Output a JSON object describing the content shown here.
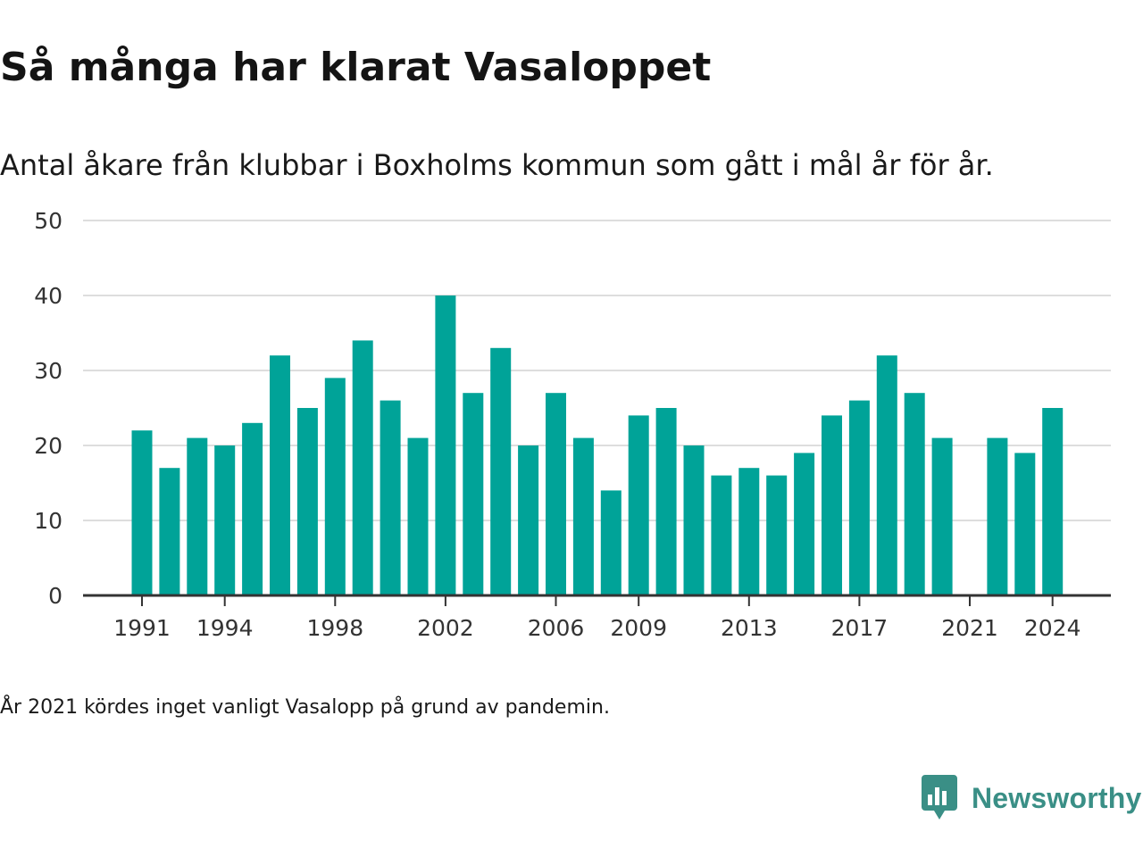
{
  "title": "Så många har klarat Vasaloppet",
  "subtitle": "Antal åkare från klubbar i Boxholms kommun som gått i mål år för år.",
  "footnote": "År 2021 kördes inget vanligt Vasalopp på grund av pandemin.",
  "brand": {
    "name": "Newsworthy",
    "color": "#3a8f86",
    "icon": "newsworthy-chart-bubble-icon"
  },
  "colors": {
    "bar": "#00a398",
    "grid": "#dddddd",
    "axis": "#333333",
    "text": "#333333"
  },
  "chart_data": {
    "type": "bar",
    "title": "Så många har klarat Vasaloppet",
    "subtitle": "Antal åkare från klubbar i Boxholms kommun som gått i mål år för år.",
    "xlabel": "",
    "ylabel": "",
    "ylim": [
      0,
      50
    ],
    "yticks": [
      0,
      10,
      20,
      30,
      40,
      50
    ],
    "grid": true,
    "legend": "none",
    "categories": [
      1991,
      1992,
      1993,
      1994,
      1995,
      1996,
      1997,
      1998,
      1999,
      2000,
      2001,
      2002,
      2003,
      2004,
      2005,
      2006,
      2007,
      2008,
      2009,
      2010,
      2011,
      2012,
      2013,
      2014,
      2015,
      2016,
      2017,
      2018,
      2019,
      2020,
      2021,
      2022,
      2023,
      2024
    ],
    "values": [
      22,
      17,
      21,
      20,
      23,
      32,
      25,
      29,
      34,
      26,
      21,
      40,
      27,
      33,
      20,
      27,
      21,
      14,
      24,
      25,
      20,
      16,
      17,
      16,
      19,
      24,
      26,
      32,
      27,
      21,
      null,
      21,
      19,
      25
    ],
    "xtick_labels": [
      "1991",
      "1994",
      "1998",
      "2002",
      "2006",
      "2009",
      "2013",
      "2017",
      "2021",
      "2024"
    ]
  }
}
